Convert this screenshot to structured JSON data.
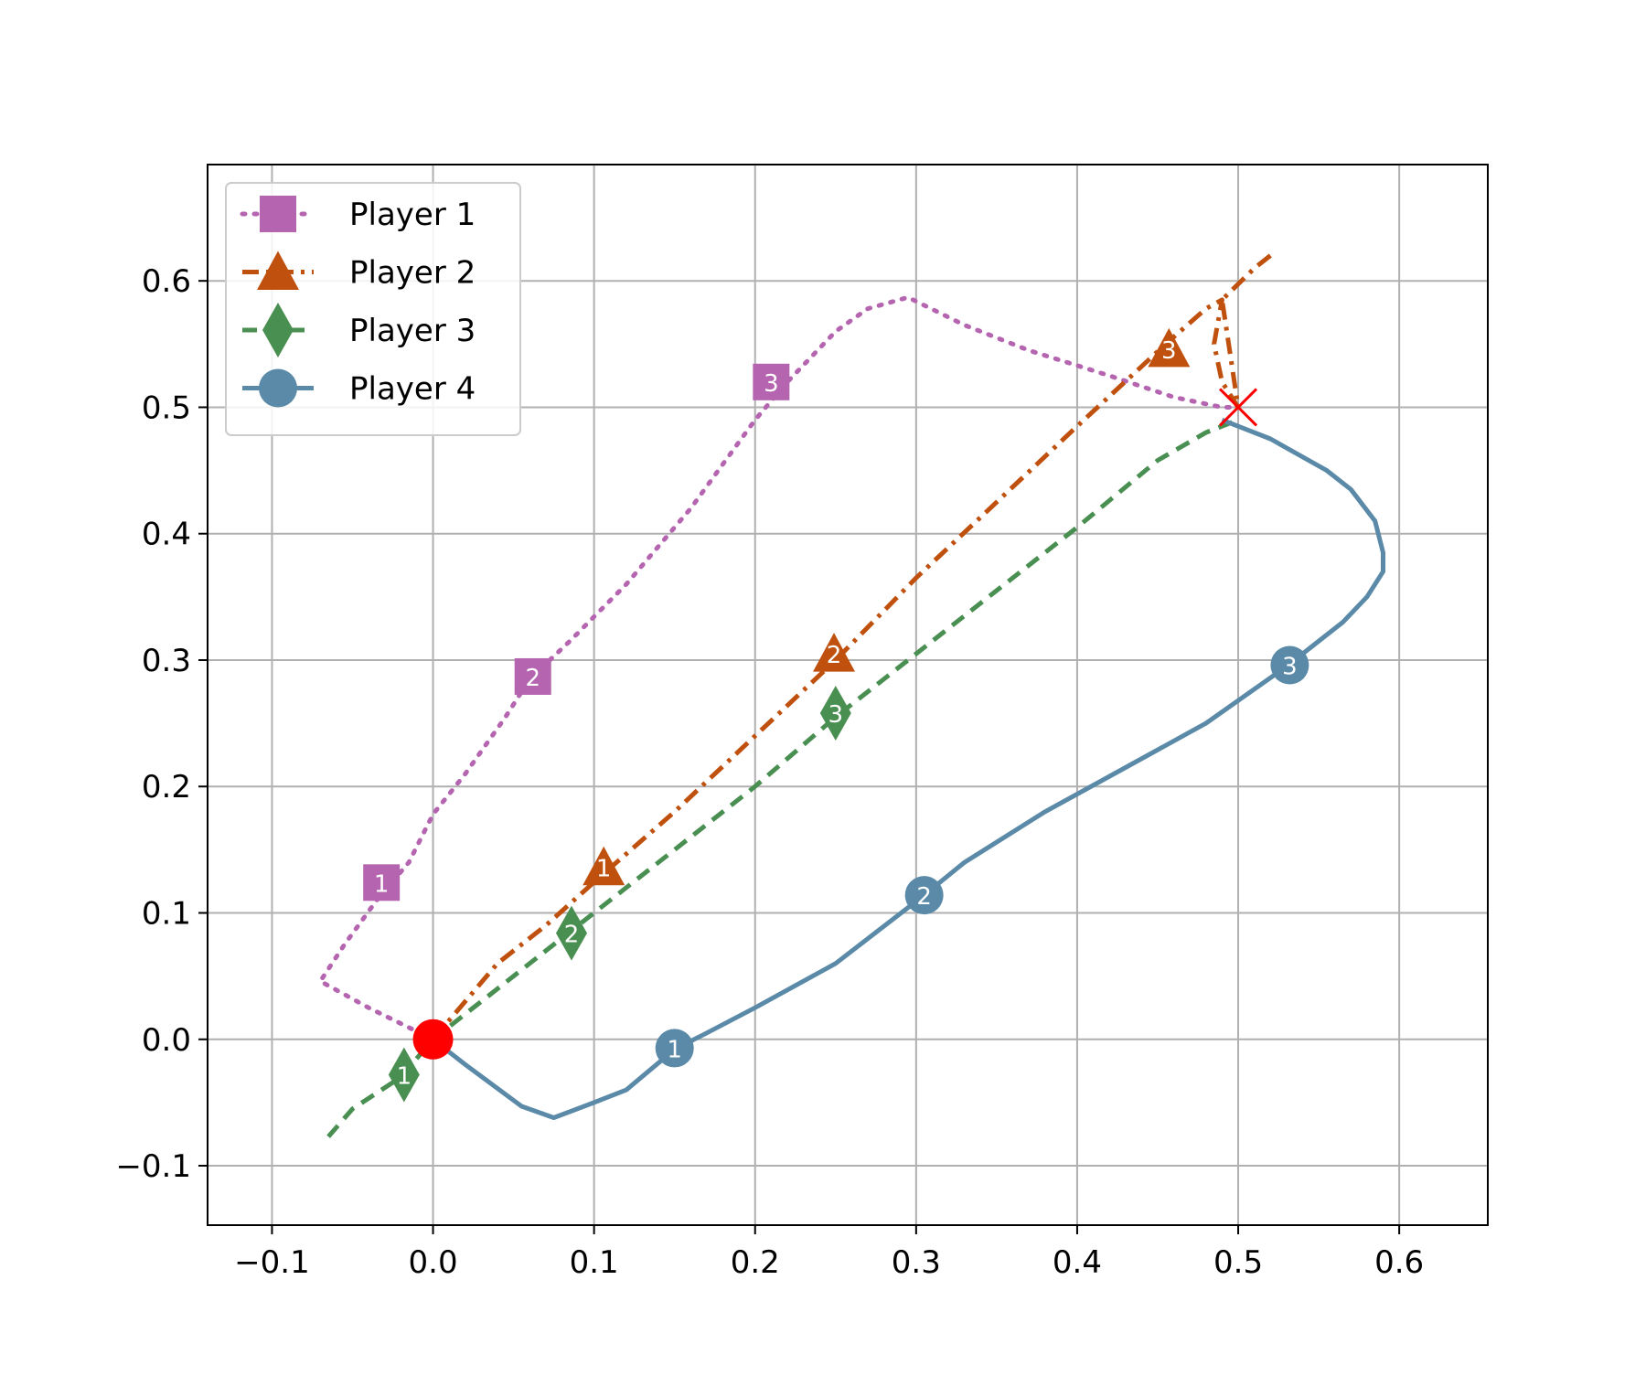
{
  "chart_data": {
    "type": "line",
    "title": "",
    "xlabel": "",
    "ylabel": "",
    "xlim": [
      -0.14,
      0.655
    ],
    "ylim": [
      -0.147,
      0.692
    ],
    "grid": true,
    "legend_position": "top-left",
    "x_ticks": [
      -0.1,
      0.0,
      0.1,
      0.2,
      0.3,
      0.4,
      0.5,
      0.6
    ],
    "y_ticks": [
      -0.1,
      0.0,
      0.1,
      0.2,
      0.3,
      0.4,
      0.5,
      0.6
    ],
    "x_tick_labels": [
      "−0.1",
      "0.0",
      "0.1",
      "0.2",
      "0.3",
      "0.4",
      "0.5",
      "0.6"
    ],
    "y_tick_labels": [
      "−0.1",
      "0.0",
      "0.1",
      "0.2",
      "0.3",
      "0.4",
      "0.5",
      "0.6"
    ],
    "start_point": {
      "x": 0.0,
      "y": 0.0,
      "color": "#ff0000"
    },
    "goal_point": {
      "x": 0.5,
      "y": 0.5,
      "color": "#ff0000"
    },
    "series": [
      {
        "name": "Player 1",
        "color": "#b565b0",
        "linestyle": "dotted",
        "marker": "square",
        "points": [
          [
            0.0,
            0.0
          ],
          [
            -0.04,
            0.025
          ],
          [
            -0.07,
            0.046
          ],
          [
            -0.055,
            0.075
          ],
          [
            -0.035,
            0.11
          ],
          [
            -0.025,
            0.125
          ],
          [
            -0.015,
            0.14
          ],
          [
            0.0,
            0.178
          ],
          [
            0.02,
            0.21
          ],
          [
            0.045,
            0.255
          ],
          [
            0.06,
            0.285
          ],
          [
            0.085,
            0.315
          ],
          [
            0.12,
            0.36
          ],
          [
            0.16,
            0.42
          ],
          [
            0.2,
            0.49
          ],
          [
            0.22,
            0.52
          ],
          [
            0.25,
            0.56
          ],
          [
            0.27,
            0.578
          ],
          [
            0.295,
            0.587
          ],
          [
            0.33,
            0.565
          ],
          [
            0.37,
            0.545
          ],
          [
            0.42,
            0.525
          ],
          [
            0.46,
            0.508
          ],
          [
            0.49,
            0.5
          ],
          [
            0.5,
            0.5
          ]
        ],
        "markers": [
          {
            "label": "1",
            "x": -0.032,
            "y": 0.124
          },
          {
            "label": "2",
            "x": 0.062,
            "y": 0.287
          },
          {
            "label": "3",
            "x": 0.21,
            "y": 0.52
          }
        ]
      },
      {
        "name": "Player 2",
        "color": "#c0500d",
        "linestyle": "dashdot",
        "marker": "triangle",
        "points": [
          [
            0.0,
            0.0
          ],
          [
            0.02,
            0.03
          ],
          [
            0.04,
            0.06
          ],
          [
            0.07,
            0.09
          ],
          [
            0.105,
            0.13
          ],
          [
            0.15,
            0.18
          ],
          [
            0.2,
            0.24
          ],
          [
            0.25,
            0.3
          ],
          [
            0.3,
            0.365
          ],
          [
            0.35,
            0.425
          ],
          [
            0.4,
            0.485
          ],
          [
            0.455,
            0.55
          ],
          [
            0.48,
            0.578
          ],
          [
            0.49,
            0.585
          ],
          [
            0.485,
            0.55
          ],
          [
            0.49,
            0.52
          ],
          [
            0.5,
            0.5
          ],
          [
            0.49,
            0.585
          ],
          [
            0.51,
            0.61
          ],
          [
            0.52,
            0.62
          ]
        ],
        "markers": [
          {
            "label": "1",
            "x": 0.106,
            "y": 0.136
          },
          {
            "label": "2",
            "x": 0.249,
            "y": 0.305
          },
          {
            "label": "3",
            "x": 0.457,
            "y": 0.546
          }
        ]
      },
      {
        "name": "Player 3",
        "color": "#4a8f52",
        "linestyle": "dashed",
        "marker": "diamond",
        "points": [
          [
            -0.065,
            -0.077
          ],
          [
            -0.05,
            -0.055
          ],
          [
            -0.02,
            -0.03
          ],
          [
            0.0,
            0.0
          ],
          [
            0.04,
            0.04
          ],
          [
            0.085,
            0.085
          ],
          [
            0.12,
            0.12
          ],
          [
            0.15,
            0.15
          ],
          [
            0.2,
            0.2
          ],
          [
            0.25,
            0.255
          ],
          [
            0.3,
            0.305
          ],
          [
            0.35,
            0.355
          ],
          [
            0.4,
            0.405
          ],
          [
            0.45,
            0.458
          ],
          [
            0.48,
            0.48
          ],
          [
            0.5,
            0.49
          ]
        ],
        "markers": [
          {
            "label": "1",
            "x": -0.018,
            "y": -0.028
          },
          {
            "label": "2",
            "x": 0.086,
            "y": 0.084
          },
          {
            "label": "3",
            "x": 0.25,
            "y": 0.258
          }
        ]
      },
      {
        "name": "Player 4",
        "color": "#5a8aa8",
        "linestyle": "solid",
        "marker": "circle",
        "points": [
          [
            0.0,
            0.0
          ],
          [
            0.02,
            -0.02
          ],
          [
            0.055,
            -0.053
          ],
          [
            0.075,
            -0.062
          ],
          [
            0.1,
            -0.05
          ],
          [
            0.12,
            -0.04
          ],
          [
            0.15,
            -0.008
          ],
          [
            0.17,
            0.005
          ],
          [
            0.2,
            0.025
          ],
          [
            0.25,
            0.06
          ],
          [
            0.305,
            0.114
          ],
          [
            0.33,
            0.14
          ],
          [
            0.38,
            0.18
          ],
          [
            0.43,
            0.215
          ],
          [
            0.48,
            0.25
          ],
          [
            0.53,
            0.295
          ],
          [
            0.565,
            0.33
          ],
          [
            0.58,
            0.35
          ],
          [
            0.59,
            0.37
          ],
          [
            0.59,
            0.385
          ],
          [
            0.585,
            0.41
          ],
          [
            0.57,
            0.435
          ],
          [
            0.555,
            0.45
          ],
          [
            0.52,
            0.475
          ],
          [
            0.49,
            0.49
          ]
        ],
        "markers": [
          {
            "label": "1",
            "x": 0.15,
            "y": -0.007
          },
          {
            "label": "2",
            "x": 0.305,
            "y": 0.114
          },
          {
            "label": "3",
            "x": 0.532,
            "y": 0.296
          }
        ]
      }
    ]
  }
}
